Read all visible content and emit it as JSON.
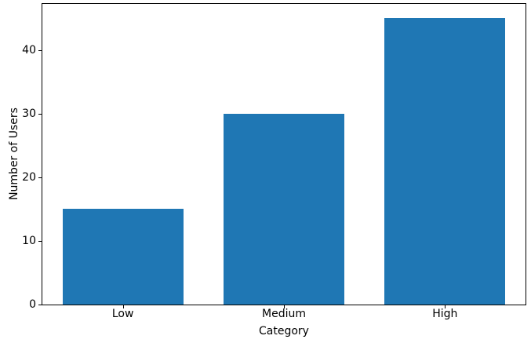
{
  "chart_data": {
    "type": "bar",
    "categories": [
      "Low",
      "Medium",
      "High"
    ],
    "values": [
      15,
      30,
      45
    ],
    "title": "",
    "xlabel": "Category",
    "ylabel": "Number of Users",
    "ylim": [
      0,
      47.25
    ],
    "yticks": [
      0,
      10,
      20,
      30,
      40
    ],
    "bar_color": "#1f77b4",
    "axis_color": "#000000",
    "background_color": "#ffffff",
    "grid": false,
    "legend": false,
    "bar_width_ratio": 0.75
  }
}
